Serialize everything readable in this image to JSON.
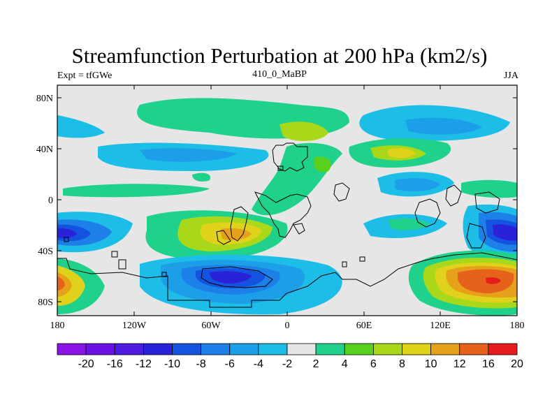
{
  "title": "Streamfunction Perturbation at 200 hPa (km2/s)",
  "left_string": "Expt = tfGWe",
  "center_string": "410_0_MaBP",
  "right_string": "JJA",
  "lat_labels": [
    "80N",
    "40N",
    "0",
    "40S",
    "80S"
  ],
  "lon_labels": [
    "180",
    "120W",
    "60W",
    "0",
    "60E",
    "120E",
    "180"
  ],
  "colorbar": {
    "labels": [
      "-20",
      "-16",
      "-12",
      "-10",
      "-8",
      "-6",
      "-4",
      "-2",
      "2",
      "4",
      "6",
      "8",
      "10",
      "12",
      "16",
      "20"
    ],
    "colors": [
      "#8a13e6",
      "#6c11e3",
      "#4d1ce0",
      "#2a22d8",
      "#1453e0",
      "#1c80e8",
      "#1c9ee8",
      "#1cbde6",
      "#e6e6e6",
      "#1fd18a",
      "#57d11d",
      "#a9d81b",
      "#e0d11b",
      "#e6a11b",
      "#e6621b",
      "#e61b1b"
    ]
  },
  "colors": {
    "background": "#e6e6e6",
    "coast": "#000000"
  }
}
